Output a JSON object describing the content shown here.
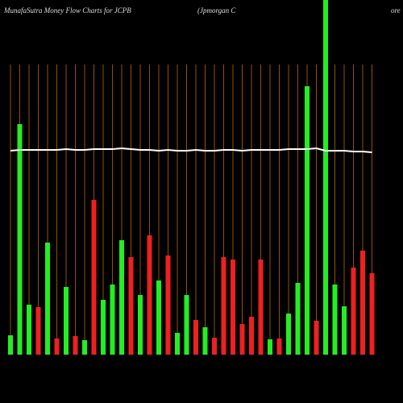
{
  "chart_data": {
    "type": "bar",
    "title": "MunafaSutra  Money Flow  Charts for JCPB",
    "subtitle": "(Jpmorgan  C",
    "subtitle_tail": "ore",
    "categories": [
      null,
      null,
      null,
      null,
      null,
      null,
      null,
      null,
      null,
      null,
      null,
      null,
      null,
      null,
      null,
      null,
      null,
      null,
      null,
      null,
      null,
      null,
      null,
      null,
      null,
      null,
      null,
      null,
      null,
      null,
      null,
      null,
      null,
      null,
      null,
      null,
      null,
      null,
      null,
      null
    ],
    "values": [
      24,
      286,
      62,
      59,
      139,
      20,
      84,
      23,
      18,
      192,
      68,
      87,
      142,
      121,
      74,
      148,
      92,
      123,
      27,
      74,
      43,
      34,
      21,
      121,
      118,
      38,
      47,
      118,
      19,
      20,
      51,
      89,
      333,
      42,
      440,
      87,
      60,
      108,
      129,
      101
    ],
    "colors": [
      "#22ee22",
      "#22ee22",
      "#22ee22",
      "#ee2020",
      "#22ee22",
      "#ee2020",
      "#22ee22",
      "#ee2020",
      "#22ee22",
      "#ee2020",
      "#22ee22",
      "#22ee22",
      "#22ee22",
      "#ee2020",
      "#22ee22",
      "#ee2020",
      "#22ee22",
      "#ee2020",
      "#22ee22",
      "#22ee22",
      "#ee2020",
      "#22ee22",
      "#ee2020",
      "#ee2020",
      "#ee2020",
      "#ee2020",
      "#ee2020",
      "#ee2020",
      "#22ee22",
      "#ee2020",
      "#22ee22",
      "#22ee22",
      "#22ee22",
      "#ee2020",
      "#22ee22",
      "#22ee22",
      "#22ee22",
      "#ee2020",
      "#ee2020",
      "#ee2020"
    ],
    "line": {
      "color": "#ffffff",
      "values": [
        253,
        254,
        254,
        254,
        254,
        254,
        255,
        254,
        254,
        255,
        255,
        255,
        256,
        255,
        254,
        254,
        253,
        254,
        253,
        253,
        254,
        253,
        253,
        254,
        254,
        253,
        254,
        254,
        254,
        254,
        255,
        255,
        255,
        256,
        253,
        253,
        253,
        252,
        252,
        251
      ]
    },
    "ylim": [
      0,
      440
    ],
    "grid_color": "#b8640a"
  }
}
